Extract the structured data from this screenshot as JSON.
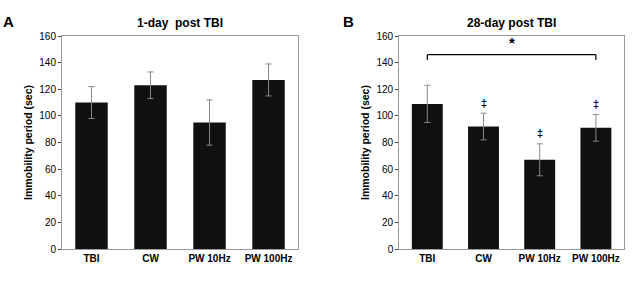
{
  "chart_data": [
    {
      "type": "bar",
      "title": "1-day  post TBI",
      "categories": [
        "TBI",
        "CW",
        "PW 10Hz",
        "PW 100Hz"
      ],
      "values": [
        110,
        123,
        95,
        127
      ],
      "errors": [
        12,
        10,
        17,
        12
      ],
      "color": "#111111",
      "error_color": "#888888",
      "ylabel": "Immobility period (sec)",
      "ylim": [
        0,
        160
      ],
      "yticks": [
        0,
        20,
        40,
        60,
        80,
        100,
        120,
        140,
        160
      ],
      "grid": false,
      "annotations": [
        {
          "text": "A"
        }
      ]
    },
    {
      "type": "bar",
      "title": "28-day post TBI",
      "categories": [
        "TBI",
        "CW",
        "PW 10Hz",
        "PW 100Hz"
      ],
      "values": [
        109,
        92,
        67,
        91
      ],
      "errors": [
        14,
        10,
        12,
        10
      ],
      "color": "#111111",
      "error_color": "#888888",
      "ylabel": "Immobility period (sec)",
      "ylim": [
        0,
        160
      ],
      "yticks": [
        0,
        20,
        40,
        60,
        80,
        100,
        120,
        140,
        160
      ],
      "grid": false,
      "annotations": [
        {
          "text": "B"
        },
        {
          "text": "‡",
          "x": "CW",
          "y": 104
        },
        {
          "text": "‡",
          "x": "PW 10Hz",
          "y": 81
        },
        {
          "text": "‡",
          "x": "PW 100Hz",
          "y": 103
        },
        {
          "text": "*",
          "x": "TBI",
          "x2": "PW 100Hz",
          "y": 147.5
        }
      ],
      "bracket": {
        "x1": "TBI",
        "x2": "PW 100Hz",
        "y": 146,
        "drop": 4
      }
    }
  ]
}
